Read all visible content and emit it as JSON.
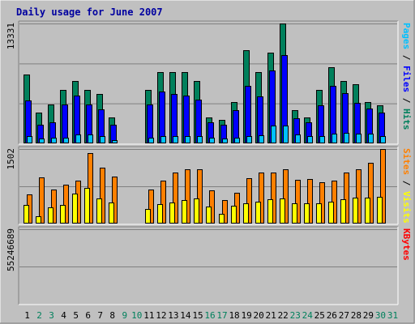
{
  "title": "Daily usage for June 2007",
  "colors": {
    "background": "#c0c0c0",
    "panel": "#c0c0c0",
    "grid": "#808080",
    "title": "#0000a0",
    "hits": "#00805c",
    "files": "#0000ff",
    "pages": "#00c0ff",
    "visits": "#ffff00",
    "sites": "#ff8000",
    "kbytes": "#ff0000",
    "weekday_label": "#000000",
    "weekend_label": "#00805c"
  },
  "chart_data": {
    "type": "bar",
    "categories": [
      "1",
      "2",
      "3",
      "4",
      "5",
      "6",
      "7",
      "8",
      "9",
      "10",
      "11",
      "12",
      "13",
      "14",
      "15",
      "16",
      "17",
      "18",
      "19",
      "20",
      "21",
      "22",
      "23",
      "24",
      "25",
      "26",
      "27",
      "28",
      "29",
      "30",
      "31"
    ],
    "weekend_days": [
      "2",
      "3",
      "9",
      "10",
      "16",
      "17",
      "23",
      "24",
      "30",
      "31"
    ],
    "panels": [
      {
        "id": "hits",
        "max_label": "13331",
        "ymax": 13331,
        "right_label": [
          {
            "text": "Pages",
            "color": "#00c0ff"
          },
          {
            "text": " / ",
            "color": "#000000"
          },
          {
            "text": "Files",
            "color": "#0000ff"
          },
          {
            "text": " / ",
            "color": "#000000"
          },
          {
            "text": "Hits",
            "color": "#00805c"
          }
        ],
        "series": [
          {
            "name": "Hits",
            "color": "#00805c",
            "values": [
              7700,
              3400,
              4300,
              5900,
              6900,
              5900,
              5500,
              2900,
              0,
              0,
              5900,
              7900,
              7900,
              7900,
              6900,
              2900,
              2600,
              4600,
              10400,
              7900,
              10100,
              13331,
              3700,
              2900,
              5900,
              8500,
              6900,
              6600,
              4600,
              4200,
              0
            ]
          },
          {
            "name": "Files",
            "color": "#0000ff",
            "values": [
              4800,
              2100,
              2300,
              4300,
              5300,
              4300,
              3800,
              2100,
              0,
              0,
              4300,
              5800,
              5500,
              5300,
              4900,
              2300,
              2100,
              3700,
              6400,
              5200,
              8100,
              9800,
              2800,
              2300,
              4200,
              6400,
              5600,
              4500,
              3900,
              3400,
              0
            ]
          },
          {
            "name": "Pages",
            "color": "#00c0ff",
            "values": [
              800,
              500,
              600,
              600,
              1000,
              1000,
              800,
              400,
              0,
              0,
              600,
              800,
              800,
              800,
              800,
              600,
              500,
              600,
              800,
              900,
              2000,
              2000,
              1000,
              800,
              800,
              1100,
              1200,
              1100,
              1100,
              800,
              0
            ]
          }
        ]
      },
      {
        "id": "visits",
        "max_label": "1502",
        "ymax": 1502,
        "right_label": [
          {
            "text": "Sites",
            "color": "#ff8000"
          },
          {
            "text": " / ",
            "color": "#000000"
          },
          {
            "text": "Visits",
            "color": "#ffff00"
          }
        ],
        "series": [
          {
            "name": "Sites",
            "color": "#ff8000",
            "values": [
              590,
              930,
              690,
              780,
              870,
              1420,
              1130,
              950,
              0,
              0,
              690,
              860,
              1030,
              1090,
              1090,
              670,
              470,
              620,
              910,
              1030,
              1030,
              1090,
              880,
              900,
              840,
              870,
              1030,
              1090,
              1220,
              1502,
              0
            ]
          },
          {
            "name": "Visits",
            "color": "#ffff00",
            "values": [
              380,
              150,
              330,
              370,
              610,
              720,
              500,
              420,
              0,
              0,
              290,
              390,
              420,
              480,
              500,
              350,
              200,
              360,
              400,
              440,
              490,
              500,
              400,
              400,
              400,
              440,
              490,
              520,
              520,
              540,
              0
            ]
          }
        ]
      },
      {
        "id": "kbytes",
        "max_label": "55246689",
        "ymax": 55246689,
        "right_label": [
          {
            "text": "KBytes",
            "color": "#ff0000"
          }
        ],
        "series": [
          {
            "name": "KBytes",
            "color": "#ff0000",
            "values": [
              22100,
              10500,
              19300,
              13900,
              23700,
              32400,
              26800,
              7900,
              0,
              0,
              22100,
              28700,
              19300,
              32600,
              9400,
              14400,
              9100,
              27000,
              23500,
              19300,
              27800,
              55246,
              11200,
              11200,
              18500,
              16400,
              26000,
              11200,
              15900,
              22100,
              0
            ]
          }
        ]
      }
    ]
  }
}
